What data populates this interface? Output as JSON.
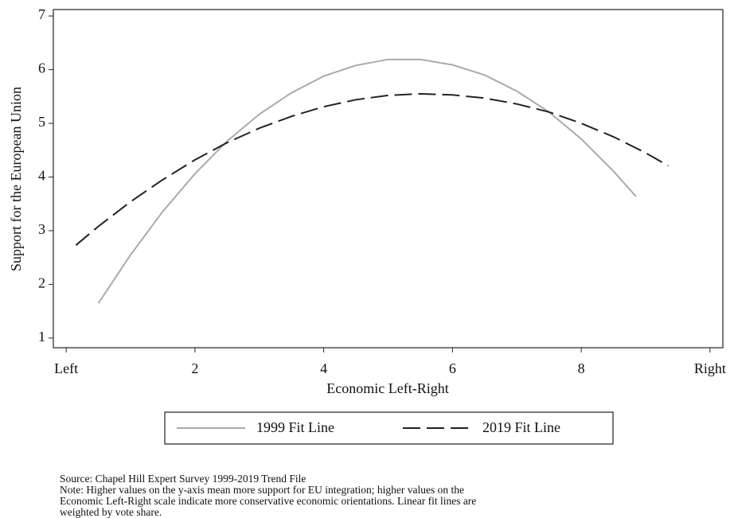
{
  "chart_data": {
    "type": "line",
    "x_label": "Economic Left-Right",
    "y_label": "Support for the European Union",
    "xlim": [
      -0.2,
      10.2
    ],
    "ylim": [
      0.82,
      7.12
    ],
    "xticks": [
      {
        "value": 0,
        "label": "Left"
      },
      2,
      4,
      6,
      8,
      {
        "value": 10,
        "label": "Right"
      }
    ],
    "yticks": [
      1,
      2,
      3,
      4,
      5,
      6,
      7
    ],
    "grid": false,
    "series": [
      {
        "name": "1999 Fit Line",
        "color": "#aaaaaa",
        "dash": "solid",
        "x": [
          0.5,
          1,
          1.5,
          2,
          2.5,
          3,
          3.5,
          4,
          4.5,
          5,
          5.5,
          6,
          6.5,
          7,
          7.5,
          8,
          8.5,
          8.85
        ],
        "values": [
          1.65,
          2.55,
          3.36,
          4.06,
          4.67,
          5.17,
          5.57,
          5.88,
          6.08,
          6.19,
          6.19,
          6.09,
          5.9,
          5.6,
          5.21,
          4.71,
          4.11,
          3.64
        ]
      },
      {
        "name": "2019 Fit Line",
        "color": "#222222",
        "dash": "long",
        "x": [
          0.15,
          0.5,
          1,
          1.5,
          2,
          2.5,
          3,
          3.5,
          4,
          4.5,
          5,
          5.5,
          6,
          6.5,
          7,
          7.5,
          8,
          8.5,
          9,
          9.35
        ],
        "values": [
          2.73,
          3.08,
          3.54,
          3.95,
          4.32,
          4.64,
          4.91,
          5.13,
          5.31,
          5.44,
          5.52,
          5.55,
          5.53,
          5.47,
          5.36,
          5.21,
          5.0,
          4.75,
          4.45,
          4.21
        ]
      }
    ],
    "notes": [
      "Source: Chapel Hill Expert Survey 1999-2019 Trend File",
      "Note: Higher values on the y-axis mean more support for EU integration; higher values on the",
      "Economic Left-Right scale indicate more conservative economic orientations. Linear fit lines are",
      "weighted by vote share."
    ]
  }
}
